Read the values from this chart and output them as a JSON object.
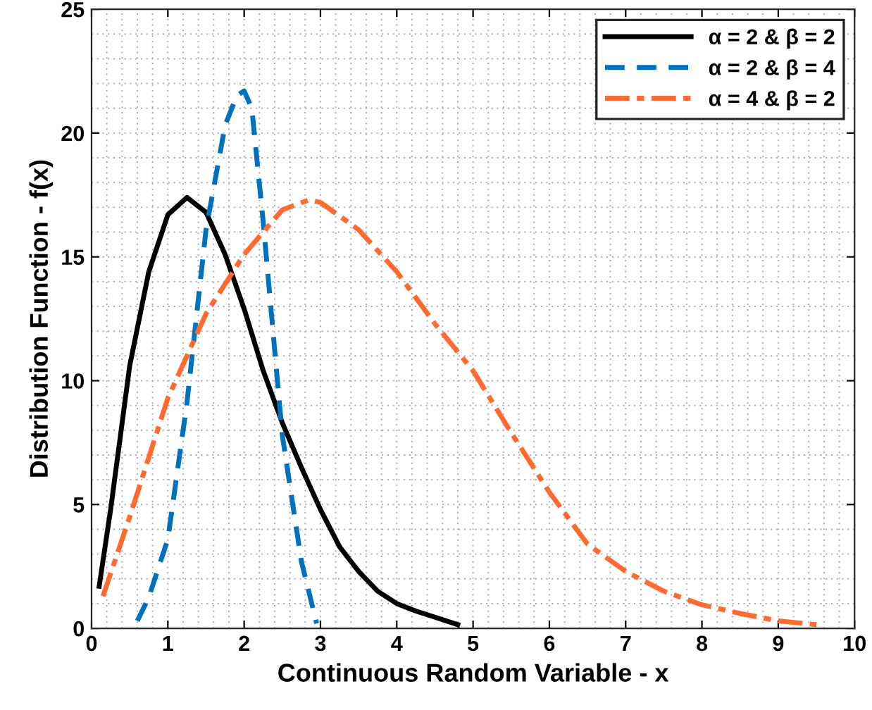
{
  "chart_data": {
    "type": "line",
    "xlabel": "Continuous Random Variable - x",
    "ylabel": "Distribution Function - f(x)",
    "xlim": [
      0,
      10
    ],
    "xticks": [
      0,
      1,
      2,
      3,
      4,
      5,
      6,
      7,
      8,
      9,
      10
    ],
    "ylim": [
      0,
      25
    ],
    "yticks": [
      0,
      5,
      10,
      15,
      20,
      25
    ],
    "grid": true,
    "legend": "top right",
    "marker": "none",
    "series": [
      {
        "name": "α = 2 & β = 2",
        "color": "#000000",
        "line_style": "solid",
        "x": [
          0.1,
          0.25,
          0.5,
          0.75,
          1.0,
          1.25,
          1.5,
          1.75,
          2.0,
          2.25,
          2.5,
          2.75,
          3.0,
          3.25,
          3.5,
          3.75,
          4.0,
          4.25,
          4.5,
          4.8
        ],
        "values": [
          1.7,
          4.8,
          10.6,
          14.4,
          16.7,
          17.4,
          16.8,
          15.1,
          12.9,
          10.4,
          8.3,
          6.5,
          4.8,
          3.3,
          2.3,
          1.5,
          1.0,
          0.7,
          0.45,
          0.15
        ]
      },
      {
        "name": "α = 2 & β = 4",
        "color": "#0072bd",
        "line_style": "dashed",
        "x": [
          0.6,
          0.75,
          1.0,
          1.25,
          1.5,
          1.75,
          1.9,
          2.0,
          2.1,
          2.25,
          2.5,
          2.75,
          2.95
        ],
        "values": [
          0.3,
          1.25,
          3.6,
          9.1,
          16.1,
          20.3,
          21.5,
          21.7,
          21.0,
          16.4,
          7.8,
          2.7,
          0.2
        ]
      },
      {
        "name": "α = 4 & β = 2",
        "color": "#ff6a2f",
        "line_style": "dashdot",
        "x": [
          0.15,
          0.5,
          1.0,
          1.5,
          2.0,
          2.5,
          2.85,
          3.0,
          3.5,
          4.0,
          4.5,
          5.0,
          5.5,
          6.0,
          6.5,
          7.0,
          7.5,
          8.0,
          8.5,
          9.0,
          9.5
        ],
        "values": [
          1.3,
          4.5,
          9.3,
          12.7,
          15.1,
          16.9,
          17.3,
          17.2,
          16.1,
          14.4,
          12.3,
          10.4,
          7.9,
          5.5,
          3.4,
          2.3,
          1.5,
          0.95,
          0.6,
          0.3,
          0.15
        ]
      }
    ]
  }
}
